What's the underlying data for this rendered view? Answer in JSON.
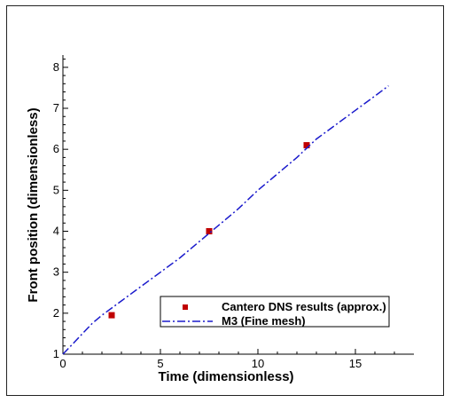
{
  "chart_data": {
    "type": "scatter",
    "xlabel": "Time (dimensionless)",
    "ylabel": "Front position (dimensionless)",
    "xlim": [
      0,
      18
    ],
    "ylim": [
      1,
      8.3
    ],
    "x_ticks": [
      0,
      5,
      10,
      15
    ],
    "y_ticks": [
      1,
      2,
      3,
      4,
      5,
      6,
      7,
      8
    ],
    "x_tick_labels": [
      "0",
      "5",
      "10",
      "15"
    ],
    "y_tick_labels": [
      "1",
      "2",
      "3",
      "4",
      "5",
      "6",
      "7",
      "8"
    ],
    "grid": false,
    "legend_position": "bottom-right",
    "series": [
      {
        "name": "Cantero DNS results (approx.)",
        "kind": "markers",
        "marker": "square",
        "color": "#c00000",
        "x": [
          2.5,
          7.5,
          12.5
        ],
        "y": [
          1.95,
          4.0,
          6.1
        ]
      },
      {
        "name": "M3 (Fine mesh)",
        "kind": "line",
        "line_style": "dash-dot",
        "color": "#1a1acc",
        "x": [
          0,
          0.5,
          1,
          1.5,
          2,
          3,
          4,
          5,
          6,
          7,
          8,
          9,
          10,
          11,
          12,
          13,
          14,
          15,
          16,
          16.7
        ],
        "y": [
          1.0,
          1.25,
          1.5,
          1.75,
          1.95,
          2.3,
          2.65,
          3.0,
          3.35,
          3.75,
          4.15,
          4.55,
          5.0,
          5.4,
          5.8,
          6.25,
          6.6,
          6.95,
          7.3,
          7.55
        ]
      }
    ]
  }
}
